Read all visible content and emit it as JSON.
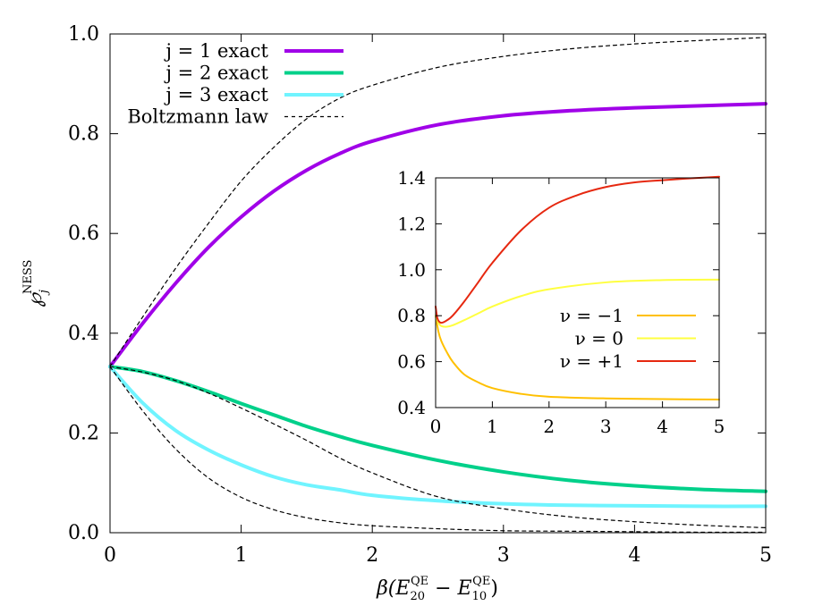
{
  "chart_data": [
    {
      "type": "line",
      "title": "",
      "xlabel": {
        "pre": "β(E",
        "sub1": "20",
        "sup1": "QE",
        "mid": " − E",
        "sub2": "10",
        "sup2": "QE",
        "post": ")"
      },
      "ylabel": {
        "base": "℘",
        "sub": "j",
        "sup": "NESS"
      },
      "xlim": [
        0,
        5
      ],
      "ylim": [
        0,
        1
      ],
      "xticks": [
        "0",
        "1",
        "2",
        "3",
        "4",
        "5"
      ],
      "yticks": [
        "0.0",
        "0.2",
        "0.4",
        "0.6",
        "0.8",
        "1.0"
      ],
      "legend_position": "top-left",
      "series": [
        {
          "name": "j = 1 exact",
          "color": "#a000e8",
          "style": "solid-thick",
          "x": [
            0,
            0.25,
            0.5,
            0.75,
            1.0,
            1.25,
            1.5,
            1.75,
            2.0,
            2.5,
            3.0,
            3.5,
            4.0,
            4.5,
            5.0
          ],
          "y": [
            0.333,
            0.42,
            0.5,
            0.572,
            0.633,
            0.685,
            0.727,
            0.76,
            0.785,
            0.818,
            0.836,
            0.846,
            0.852,
            0.856,
            0.86
          ]
        },
        {
          "name": "j = 2 exact",
          "color": "#00d08a",
          "style": "solid-thick",
          "x": [
            0,
            0.25,
            0.5,
            0.75,
            1.0,
            1.25,
            1.5,
            1.75,
            2.0,
            2.5,
            3.0,
            3.5,
            4.0,
            4.5,
            5.0
          ],
          "y": [
            0.333,
            0.323,
            0.305,
            0.283,
            0.259,
            0.236,
            0.213,
            0.193,
            0.175,
            0.145,
            0.122,
            0.105,
            0.094,
            0.087,
            0.083
          ]
        },
        {
          "name": "j = 3 exact",
          "color": "#70f4ff",
          "style": "solid-thick",
          "x": [
            0,
            0.25,
            0.5,
            0.75,
            1.0,
            1.25,
            1.5,
            1.75,
            2.0,
            2.5,
            3.0,
            3.5,
            4.0,
            4.5,
            5.0
          ],
          "y": [
            0.333,
            0.26,
            0.205,
            0.166,
            0.136,
            0.112,
            0.096,
            0.086,
            0.075,
            0.064,
            0.058,
            0.055,
            0.054,
            0.053,
            0.053
          ]
        },
        {
          "name": "Boltzmann law",
          "color": "#000000",
          "style": "dashed",
          "x": [
            0,
            0.25,
            0.5,
            0.75,
            1.0,
            1.25,
            1.5,
            1.75,
            2.0,
            2.5,
            3.0,
            3.5,
            4.0,
            4.5,
            5.0
          ],
          "y": [
            0.333,
            0.433,
            0.53,
            0.62,
            0.705,
            0.773,
            0.83,
            0.871,
            0.897,
            0.933,
            0.955,
            0.97,
            0.98,
            0.987,
            0.993
          ]
        },
        {
          "name": "",
          "color": "#000000",
          "style": "dashed",
          "x": [
            0,
            0.25,
            0.5,
            0.75,
            1.0,
            1.25,
            1.5,
            1.75,
            2.0,
            2.5,
            3.0,
            3.5,
            4.0,
            4.5,
            5.0
          ],
          "y": [
            0.333,
            0.322,
            0.305,
            0.28,
            0.25,
            0.218,
            0.185,
            0.15,
            0.12,
            0.072,
            0.048,
            0.032,
            0.022,
            0.015,
            0.01
          ]
        },
        {
          "name": "",
          "color": "#000000",
          "style": "dashed",
          "x": [
            0,
            0.25,
            0.5,
            0.75,
            1.0,
            1.25,
            1.5,
            1.75,
            2.0,
            2.5,
            3.0,
            3.5,
            4.0,
            4.5,
            5.0
          ],
          "y": [
            0.333,
            0.244,
            0.168,
            0.11,
            0.071,
            0.046,
            0.03,
            0.02,
            0.014,
            0.008,
            0.004,
            0.003,
            0.002,
            0.001,
            0.001
          ]
        }
      ]
    },
    {
      "type": "line",
      "title": "",
      "xlabel": "",
      "ylabel": "",
      "xlim": [
        0,
        5
      ],
      "ylim": [
        0.4,
        1.4
      ],
      "xticks": [
        "0",
        "1",
        "2",
        "3",
        "4",
        "5"
      ],
      "yticks": [
        "0.4",
        "0.6",
        "0.8",
        "1.0",
        "1.2",
        "1.4"
      ],
      "legend_position": "right",
      "series": [
        {
          "name": "ν = −1",
          "color": "#ffc000",
          "style": "solid",
          "x": [
            0,
            0.05,
            0.1,
            0.2,
            0.3,
            0.5,
            0.75,
            1.0,
            1.5,
            2.0,
            3.0,
            4.0,
            5.0
          ],
          "y": [
            0.8,
            0.73,
            0.69,
            0.64,
            0.6,
            0.545,
            0.51,
            0.485,
            0.46,
            0.447,
            0.44,
            0.437,
            0.435
          ]
        },
        {
          "name": "ν =    0",
          "color": "#ffff40",
          "style": "solid",
          "x": [
            0,
            0.05,
            0.1,
            0.2,
            0.3,
            0.5,
            0.75,
            1.0,
            1.5,
            2.0,
            3.0,
            4.0,
            5.0
          ],
          "y": [
            0.8,
            0.77,
            0.755,
            0.752,
            0.758,
            0.78,
            0.81,
            0.84,
            0.885,
            0.915,
            0.945,
            0.955,
            0.957
          ]
        },
        {
          "name": "ν = +1",
          "color": "#e62810",
          "style": "solid",
          "x": [
            0,
            0.03,
            0.07,
            0.12,
            0.2,
            0.3,
            0.5,
            0.75,
            1.0,
            1.5,
            2.0,
            2.5,
            3.0,
            3.5,
            4.0,
            4.5,
            5.0
          ],
          "y": [
            0.84,
            0.79,
            0.772,
            0.77,
            0.78,
            0.8,
            0.86,
            0.945,
            1.03,
            1.17,
            1.27,
            1.325,
            1.36,
            1.38,
            1.39,
            1.398,
            1.405
          ]
        }
      ]
    }
  ]
}
